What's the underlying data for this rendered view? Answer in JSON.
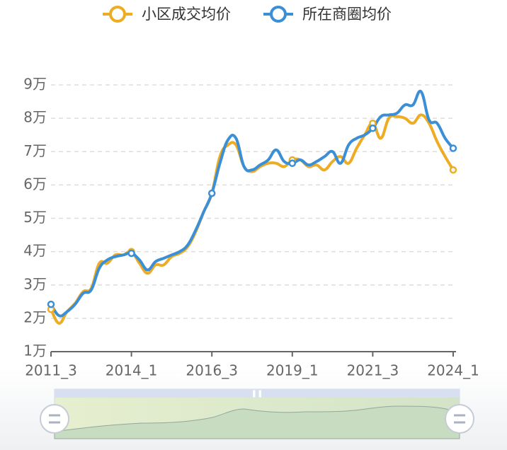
{
  "chart_data": {
    "type": "line",
    "categories": [
      "2011_3",
      null,
      null,
      null,
      null,
      null,
      null,
      null,
      null,
      null,
      "2014_1",
      null,
      null,
      null,
      null,
      null,
      null,
      null,
      null,
      null,
      "2016_3",
      null,
      null,
      null,
      null,
      null,
      null,
      null,
      null,
      null,
      "2019_1",
      null,
      null,
      null,
      null,
      null,
      null,
      null,
      null,
      null,
      "2021_3",
      null,
      null,
      null,
      null,
      null,
      null,
      null,
      null,
      null,
      "2024_1"
    ],
    "series": [
      {
        "name": "小区成交均价",
        "color": "#eeac22",
        "values": [
          2.27,
          1.85,
          2.2,
          2.45,
          2.8,
          2.9,
          3.65,
          3.65,
          3.9,
          3.9,
          4.0,
          3.65,
          3.35,
          3.6,
          3.6,
          3.85,
          3.95,
          4.15,
          4.6,
          5.2,
          5.75,
          6.85,
          7.2,
          7.2,
          6.55,
          6.4,
          6.55,
          6.65,
          6.65,
          6.55,
          6.75,
          6.75,
          6.55,
          6.6,
          6.45,
          6.7,
          6.85,
          6.65,
          7.1,
          7.5,
          7.85,
          7.4,
          8.0,
          8.05,
          8.0,
          7.85,
          8.1,
          7.85,
          7.3,
          6.85,
          6.45
        ]
      },
      {
        "name": "所在商圈均价",
        "color": "#3a8fd6",
        "values": [
          2.42,
          2.08,
          2.2,
          2.42,
          2.75,
          2.85,
          3.5,
          3.75,
          3.85,
          3.9,
          3.95,
          3.75,
          3.45,
          3.7,
          3.8,
          3.9,
          4.0,
          4.2,
          4.65,
          5.2,
          5.75,
          6.65,
          7.35,
          7.4,
          6.55,
          6.45,
          6.6,
          6.75,
          7.05,
          6.7,
          6.65,
          6.75,
          6.6,
          6.7,
          6.85,
          7.0,
          6.65,
          7.2,
          7.4,
          7.5,
          7.7,
          8.05,
          8.1,
          8.15,
          8.4,
          8.4,
          8.8,
          7.95,
          7.85,
          7.4,
          7.1
        ]
      }
    ],
    "ylim": [
      1,
      9
    ],
    "yticks": [
      {
        "value": 1,
        "label": "1万"
      },
      {
        "value": 2,
        "label": "2万"
      },
      {
        "value": 3,
        "label": "3万"
      },
      {
        "value": 4,
        "label": "4万"
      },
      {
        "value": 5,
        "label": "5万"
      },
      {
        "value": 6,
        "label": "6万"
      },
      {
        "value": 7,
        "label": "7万"
      },
      {
        "value": 8,
        "label": "8万"
      },
      {
        "value": 9,
        "label": "9万"
      }
    ],
    "grid": true
  }
}
